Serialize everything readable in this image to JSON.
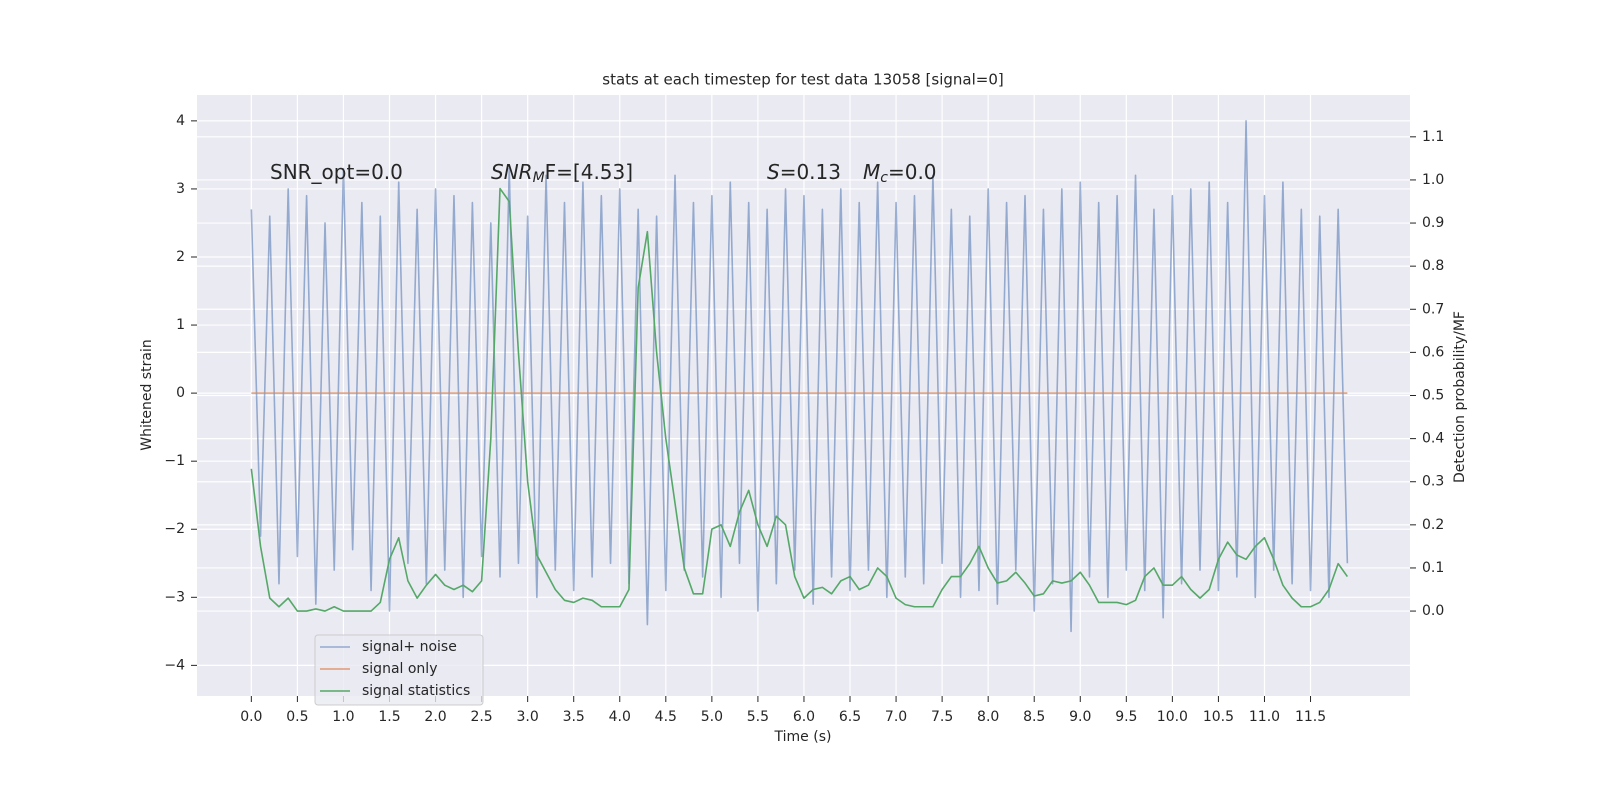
{
  "chart_data": {
    "type": "line",
    "title": "stats at each timestep for test data 13058 [signal=0]",
    "xlabel": "Time (s)",
    "ylabel": "Whitened strain",
    "y2label": "Detection probability/MF",
    "annotations": [
      [
        {
          "text": "SNR_opt=0.0"
        }
      ],
      [
        {
          "text": "SNR",
          "style": "italic"
        },
        {
          "text": "M",
          "style": "sub"
        },
        {
          "text": "F=[4.53]"
        }
      ],
      [
        {
          "text": "S",
          "style": "italic"
        },
        {
          "text": "=0.13"
        },
        {
          "text": "M",
          "style": "italic"
        },
        {
          "text": "c",
          "style": "sub"
        },
        {
          "text": "=0.0"
        }
      ]
    ],
    "x": [
      0,
      0.1,
      0.2,
      0.3,
      0.4,
      0.5,
      0.6,
      0.7,
      0.8,
      0.9,
      1,
      1.1,
      1.2,
      1.3,
      1.4,
      1.5,
      1.6,
      1.7,
      1.8,
      1.9,
      2,
      2.1,
      2.2,
      2.3,
      2.4,
      2.5,
      2.6,
      2.7,
      2.8,
      2.9,
      3,
      3.1,
      3.2,
      3.3,
      3.4,
      3.5,
      3.6,
      3.7,
      3.8,
      3.9,
      4,
      4.1,
      4.2,
      4.3,
      4.4,
      4.5,
      4.6,
      4.7,
      4.8,
      4.9,
      5,
      5.1,
      5.2,
      5.3,
      5.4,
      5.5,
      5.6,
      5.7,
      5.8,
      5.9,
      6,
      6.1,
      6.2,
      6.3,
      6.4,
      6.5,
      6.6,
      6.7,
      6.8,
      6.9,
      7,
      7.1,
      7.2,
      7.3,
      7.4,
      7.5,
      7.6,
      7.7,
      7.8,
      7.9,
      8,
      8.1,
      8.2,
      8.3,
      8.4,
      8.5,
      8.6,
      8.7,
      8.8,
      8.9,
      9,
      9.1,
      9.2,
      9.3,
      9.4,
      9.5,
      9.6,
      9.7,
      9.8,
      9.9,
      10,
      10.1,
      10.2,
      10.3,
      10.4,
      10.5,
      10.6,
      10.7,
      10.8,
      10.9,
      11,
      11.1,
      11.2,
      11.3,
      11.4,
      11.5,
      11.6,
      11.7,
      11.8,
      11.9
    ],
    "series": [
      {
        "name": "signal+ noise",
        "color": "#4c72b0",
        "values": [
          2.7,
          -2.1,
          2.6,
          -2.8,
          3.0,
          -2.4,
          2.9,
          -3.1,
          2.5,
          -2.6,
          3.3,
          -2.3,
          2.8,
          -2.9,
          2.6,
          -3.2,
          3.1,
          -2.5,
          2.7,
          -2.8,
          3.0,
          -2.6,
          2.9,
          -3.0,
          2.8,
          -2.4,
          2.5,
          -2.7,
          3.3,
          -2.5,
          2.6,
          -3.0,
          3.2,
          -2.6,
          2.8,
          -2.9,
          3.1,
          -2.7,
          2.9,
          -2.5,
          3.0,
          -2.8,
          2.7,
          -3.4,
          2.6,
          -2.9,
          3.2,
          -2.6,
          2.8,
          -2.7,
          2.9,
          -3.0,
          3.1,
          -2.5,
          2.8,
          -3.2,
          2.7,
          -2.8,
          3.0,
          -2.6,
          2.9,
          -3.1,
          2.7,
          -2.7,
          3.0,
          -2.9,
          2.8,
          -2.6,
          3.1,
          -3.0,
          2.8,
          -2.7,
          2.9,
          -2.8,
          3.2,
          -2.5,
          2.7,
          -3.0,
          2.6,
          -2.9,
          3.0,
          -3.1,
          2.8,
          -2.6,
          2.9,
          -3.2,
          2.7,
          -2.8,
          3.0,
          -3.5,
          3.1,
          -2.7,
          2.8,
          -3.0,
          2.9,
          -2.6,
          3.2,
          -2.9,
          2.7,
          -3.3,
          2.9,
          -2.8,
          3.0,
          -2.6,
          3.1,
          -2.9,
          2.8,
          -2.7,
          4.0,
          -3.0,
          2.9,
          -2.6,
          3.1,
          -2.8,
          2.7,
          -2.9,
          2.6,
          -3.0,
          2.7,
          -2.5
        ]
      },
      {
        "name": "signal only",
        "color": "#dd8452",
        "values": [
          0,
          0,
          0,
          0,
          0,
          0,
          0,
          0,
          0,
          0,
          0,
          0,
          0,
          0,
          0,
          0,
          0,
          0,
          0,
          0,
          0,
          0,
          0,
          0,
          0,
          0,
          0,
          0,
          0,
          0,
          0,
          0,
          0,
          0,
          0,
          0,
          0,
          0,
          0,
          0,
          0,
          0,
          0,
          0,
          0,
          0,
          0,
          0,
          0,
          0,
          0,
          0,
          0,
          0,
          0,
          0,
          0,
          0,
          0,
          0,
          0,
          0,
          0,
          0,
          0,
          0,
          0,
          0,
          0,
          0,
          0,
          0,
          0,
          0,
          0,
          0,
          0,
          0,
          0,
          0,
          0,
          0,
          0,
          0,
          0,
          0,
          0,
          0,
          0,
          0,
          0,
          0,
          0,
          0,
          0,
          0,
          0,
          0,
          0,
          0,
          0,
          0,
          0,
          0,
          0,
          0,
          0,
          0,
          0,
          0,
          0,
          0,
          0,
          0,
          0,
          0,
          0,
          0,
          0,
          0
        ]
      },
      {
        "name": "signal statistics",
        "color": "#55a868",
        "axis": "y2",
        "values": [
          0.33,
          0.15,
          0.03,
          0.01,
          0.03,
          0,
          0,
          0.005,
          0,
          0.01,
          0,
          0,
          0,
          0,
          0.02,
          0.12,
          0.17,
          0.07,
          0.03,
          0.06,
          0.085,
          0.06,
          0.05,
          0.06,
          0.045,
          0.07,
          0.4,
          0.98,
          0.95,
          0.6,
          0.3,
          0.13,
          0.09,
          0.05,
          0.025,
          0.02,
          0.03,
          0.025,
          0.01,
          0.01,
          0.01,
          0.05,
          0.75,
          0.88,
          0.6,
          0.4,
          0.25,
          0.1,
          0.04,
          0.04,
          0.19,
          0.2,
          0.15,
          0.23,
          0.28,
          0.2,
          0.15,
          0.22,
          0.2,
          0.08,
          0.03,
          0.05,
          0.055,
          0.04,
          0.07,
          0.08,
          0.05,
          0.06,
          0.1,
          0.08,
          0.03,
          0.015,
          0.01,
          0.01,
          0.01,
          0.05,
          0.08,
          0.08,
          0.11,
          0.15,
          0.1,
          0.065,
          0.07,
          0.09,
          0.065,
          0.035,
          0.04,
          0.07,
          0.065,
          0.07,
          0.09,
          0.06,
          0.02,
          0.02,
          0.02,
          0.015,
          0.025,
          0.08,
          0.1,
          0.06,
          0.06,
          0.08,
          0.05,
          0.03,
          0.05,
          0.12,
          0.16,
          0.13,
          0.12,
          0.15,
          0.17,
          0.12,
          0.06,
          0.03,
          0.01,
          0.01,
          0.02,
          0.05,
          0.11,
          0.08
        ]
      }
    ],
    "xlim": [
      -0.59,
      12.58
    ],
    "xticks": [
      {
        "value": 0,
        "label": "0.0"
      },
      {
        "value": 0.5,
        "label": "0.5"
      },
      {
        "value": 1,
        "label": "1.0"
      },
      {
        "value": 1.5,
        "label": "1.5"
      },
      {
        "value": 2,
        "label": "2.0"
      },
      {
        "value": 2.5,
        "label": "2.5"
      },
      {
        "value": 3,
        "label": "3.0"
      },
      {
        "value": 3.5,
        "label": "3.5"
      },
      {
        "value": 4,
        "label": "4.0"
      },
      {
        "value": 4.5,
        "label": "4.5"
      },
      {
        "value": 5,
        "label": "5.0"
      },
      {
        "value": 5.5,
        "label": "5.5"
      },
      {
        "value": 6,
        "label": "6.0"
      },
      {
        "value": 6.5,
        "label": "6.5"
      },
      {
        "value": 7,
        "label": "7.0"
      },
      {
        "value": 7.5,
        "label": "7.5"
      },
      {
        "value": 8,
        "label": "8.0"
      },
      {
        "value": 8.5,
        "label": "8.5"
      },
      {
        "value": 9,
        "label": "9.0"
      },
      {
        "value": 9.5,
        "label": "9.5"
      },
      {
        "value": 10,
        "label": "10.0"
      },
      {
        "value": 10.5,
        "label": "10.5"
      },
      {
        "value": 11,
        "label": "11.0"
      },
      {
        "value": 11.5,
        "label": "11.5"
      }
    ],
    "ylim": [
      -4.45,
      4.38
    ],
    "yticks": [
      {
        "value": -4,
        "label": "−4"
      },
      {
        "value": -3,
        "label": "−3"
      },
      {
        "value": -2,
        "label": "−2"
      },
      {
        "value": -1,
        "label": "−1"
      },
      0,
      1,
      2,
      3,
      4
    ],
    "y2lim": [
      -0.197,
      1.197
    ],
    "y2ticks": [
      {
        "value": 0,
        "label": "0.0"
      },
      {
        "value": 0.1,
        "label": "0.1"
      },
      {
        "value": 0.2,
        "label": "0.2"
      },
      {
        "value": 0.3,
        "label": "0.3"
      },
      {
        "value": 0.4,
        "label": "0.4"
      },
      {
        "value": 0.5,
        "label": "0.5"
      },
      {
        "value": 0.6,
        "label": "0.6"
      },
      {
        "value": 0.7,
        "label": "0.7"
      },
      {
        "value": 0.8,
        "label": "0.8"
      },
      {
        "value": 0.9,
        "label": "0.9"
      },
      {
        "value": 1,
        "label": "1.0"
      },
      {
        "value": 1.1,
        "label": "1.1"
      }
    ],
    "grid": true,
    "legend": "lower left",
    "background": "#eaeaf2"
  }
}
